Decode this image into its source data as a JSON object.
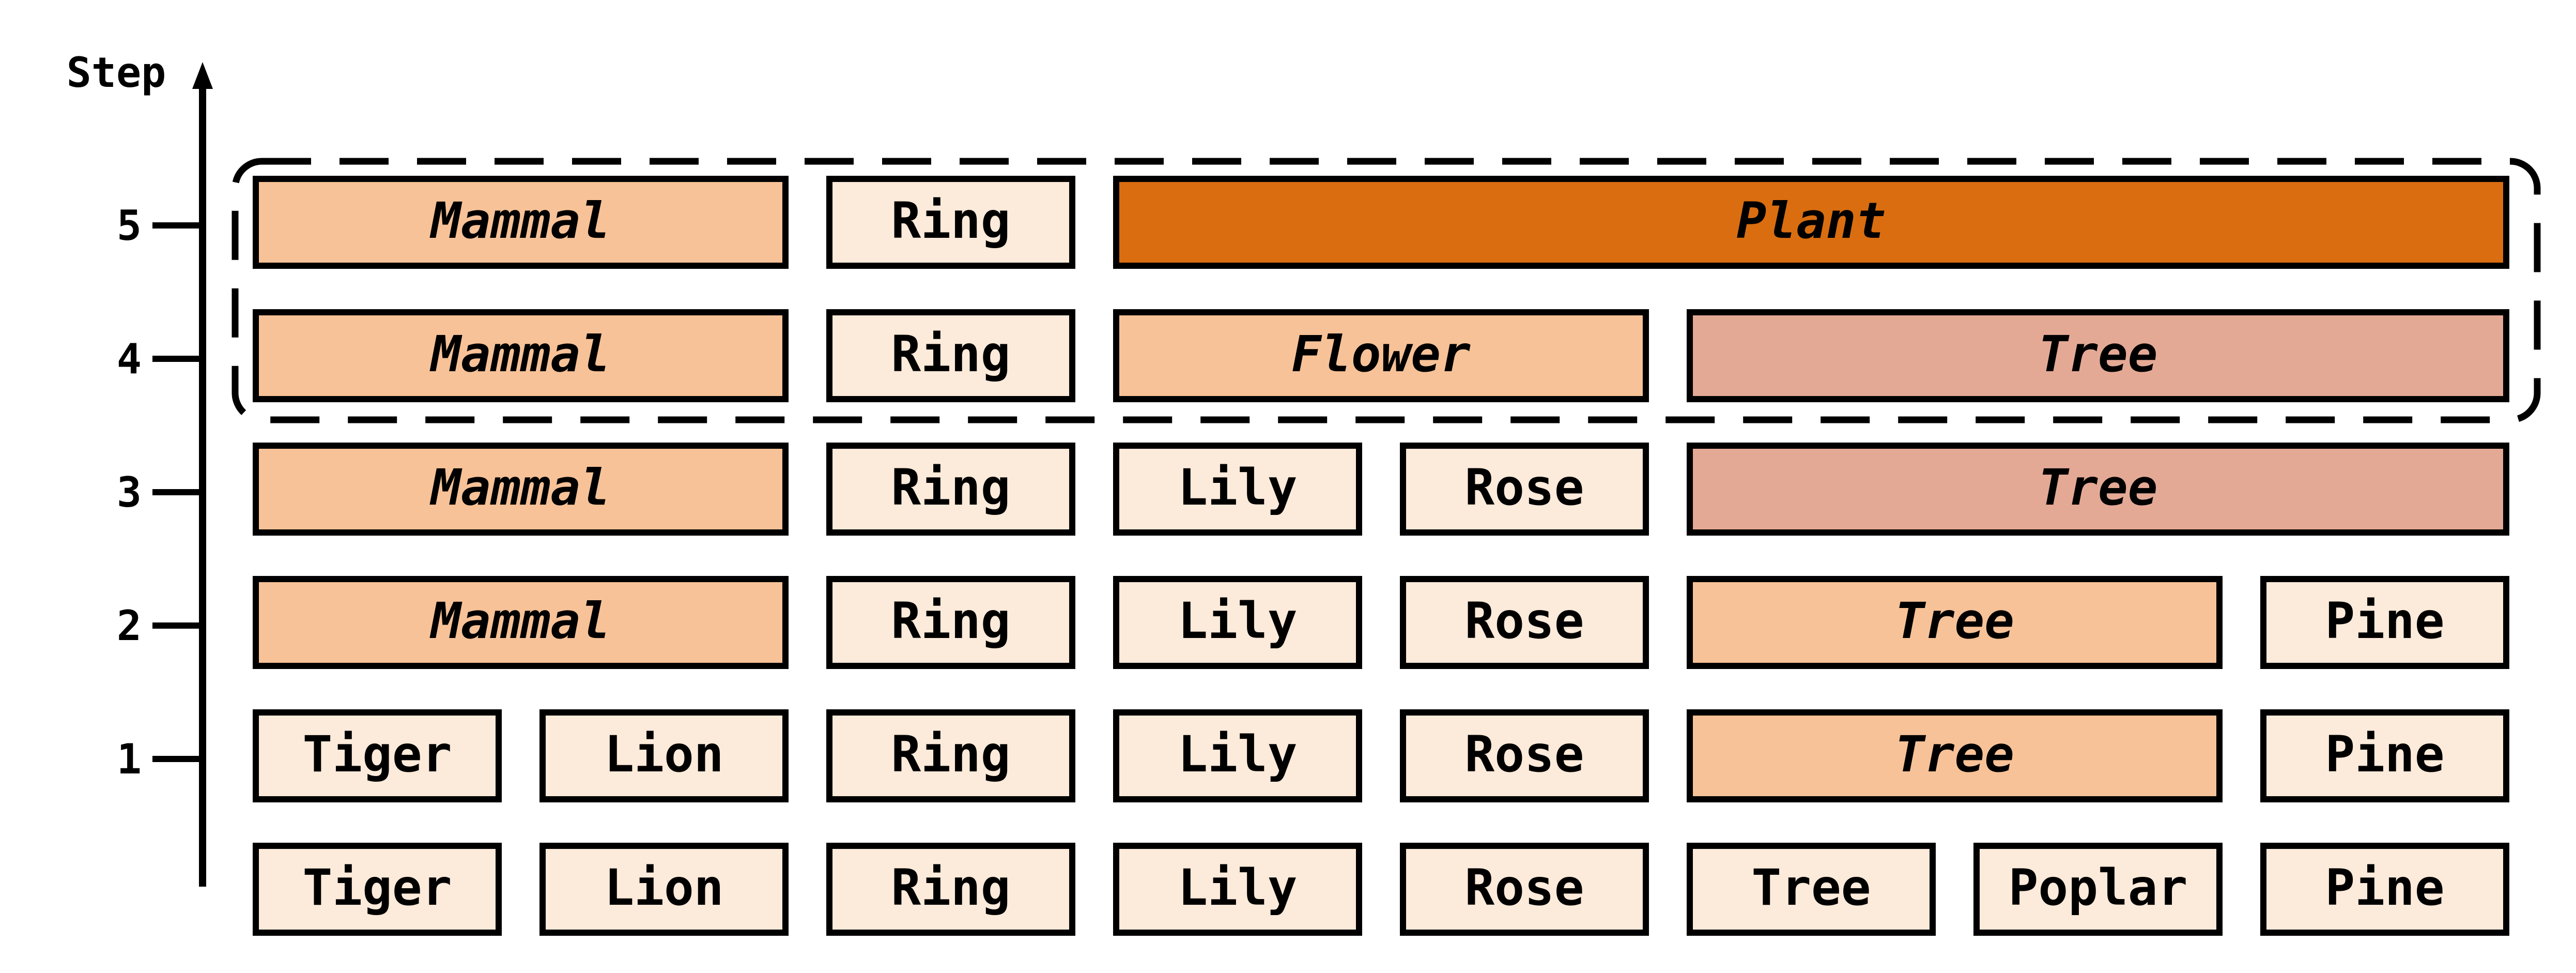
{
  "axis": {
    "label": "Step",
    "ticks": [
      "1",
      "2",
      "3",
      "4",
      "5"
    ]
  },
  "colors": {
    "light": "#FCEADA",
    "medium": "#F7C297",
    "dark": "#D96D10",
    "rose": "#E4A995",
    "stroke": "#000000"
  },
  "rows": [
    {
      "step": "0",
      "cells": [
        {
          "label": "Tiger",
          "slot": 0,
          "span": 1,
          "style": "light",
          "italic": false
        },
        {
          "label": "Lion",
          "slot": 1,
          "span": 1,
          "style": "light",
          "italic": false
        },
        {
          "label": "Ring",
          "slot": 2,
          "span": 1,
          "style": "light",
          "italic": false
        },
        {
          "label": "Lily",
          "slot": 3,
          "span": 1,
          "style": "light",
          "italic": false
        },
        {
          "label": "Rose",
          "slot": 4,
          "span": 1,
          "style": "light",
          "italic": false
        },
        {
          "label": "Tree",
          "slot": 5,
          "span": 1,
          "style": "light",
          "italic": false
        },
        {
          "label": "Poplar",
          "slot": 6,
          "span": 1,
          "style": "light",
          "italic": false
        },
        {
          "label": "Pine",
          "slot": 7,
          "span": 1,
          "style": "light",
          "italic": false
        }
      ]
    },
    {
      "step": "1",
      "cells": [
        {
          "label": "Tiger",
          "slot": 0,
          "span": 1,
          "style": "light",
          "italic": false
        },
        {
          "label": "Lion",
          "slot": 1,
          "span": 1,
          "style": "light",
          "italic": false
        },
        {
          "label": "Ring",
          "slot": 2,
          "span": 1,
          "style": "light",
          "italic": false
        },
        {
          "label": "Lily",
          "slot": 3,
          "span": 1,
          "style": "light",
          "italic": false
        },
        {
          "label": "Rose",
          "slot": 4,
          "span": 1,
          "style": "light",
          "italic": false
        },
        {
          "label": "Tree",
          "slot": 5,
          "span": 2,
          "style": "medium",
          "italic": true
        },
        {
          "label": "Pine",
          "slot": 7,
          "span": 1,
          "style": "light",
          "italic": false
        }
      ]
    },
    {
      "step": "2",
      "cells": [
        {
          "label": "Mammal",
          "slot": 0,
          "span": 2,
          "style": "medium",
          "italic": true
        },
        {
          "label": "Ring",
          "slot": 2,
          "span": 1,
          "style": "light",
          "italic": false
        },
        {
          "label": "Lily",
          "slot": 3,
          "span": 1,
          "style": "light",
          "italic": false
        },
        {
          "label": "Rose",
          "slot": 4,
          "span": 1,
          "style": "light",
          "italic": false
        },
        {
          "label": "Tree",
          "slot": 5,
          "span": 2,
          "style": "medium",
          "italic": true
        },
        {
          "label": "Pine",
          "slot": 7,
          "span": 1,
          "style": "light",
          "italic": false
        }
      ]
    },
    {
      "step": "3",
      "cells": [
        {
          "label": "Mammal",
          "slot": 0,
          "span": 2,
          "style": "medium",
          "italic": true
        },
        {
          "label": "Ring",
          "slot": 2,
          "span": 1,
          "style": "light",
          "italic": false
        },
        {
          "label": "Lily",
          "slot": 3,
          "span": 1,
          "style": "light",
          "italic": false
        },
        {
          "label": "Rose",
          "slot": 4,
          "span": 1,
          "style": "light",
          "italic": false
        },
        {
          "label": "Tree",
          "slot": 5,
          "span": 3,
          "style": "rose",
          "italic": true
        }
      ]
    },
    {
      "step": "4",
      "cells": [
        {
          "label": "Mammal",
          "slot": 0,
          "span": 2,
          "style": "medium",
          "italic": true
        },
        {
          "label": "Ring",
          "slot": 2,
          "span": 1,
          "style": "light",
          "italic": false
        },
        {
          "label": "Flower",
          "slot": 3,
          "span": 2,
          "style": "medium",
          "italic": true
        },
        {
          "label": "Tree",
          "slot": 5,
          "span": 3,
          "style": "rose",
          "italic": true
        }
      ]
    },
    {
      "step": "5",
      "cells": [
        {
          "label": "Mammal",
          "slot": 0,
          "span": 2,
          "style": "medium",
          "italic": true
        },
        {
          "label": "Ring",
          "slot": 2,
          "span": 1,
          "style": "light",
          "italic": false
        },
        {
          "label": "Plant",
          "slot": 3,
          "span": 5,
          "style": "dark",
          "italic": true
        }
      ]
    }
  ],
  "highlight": {
    "from_step": "4",
    "to_step": "5"
  }
}
